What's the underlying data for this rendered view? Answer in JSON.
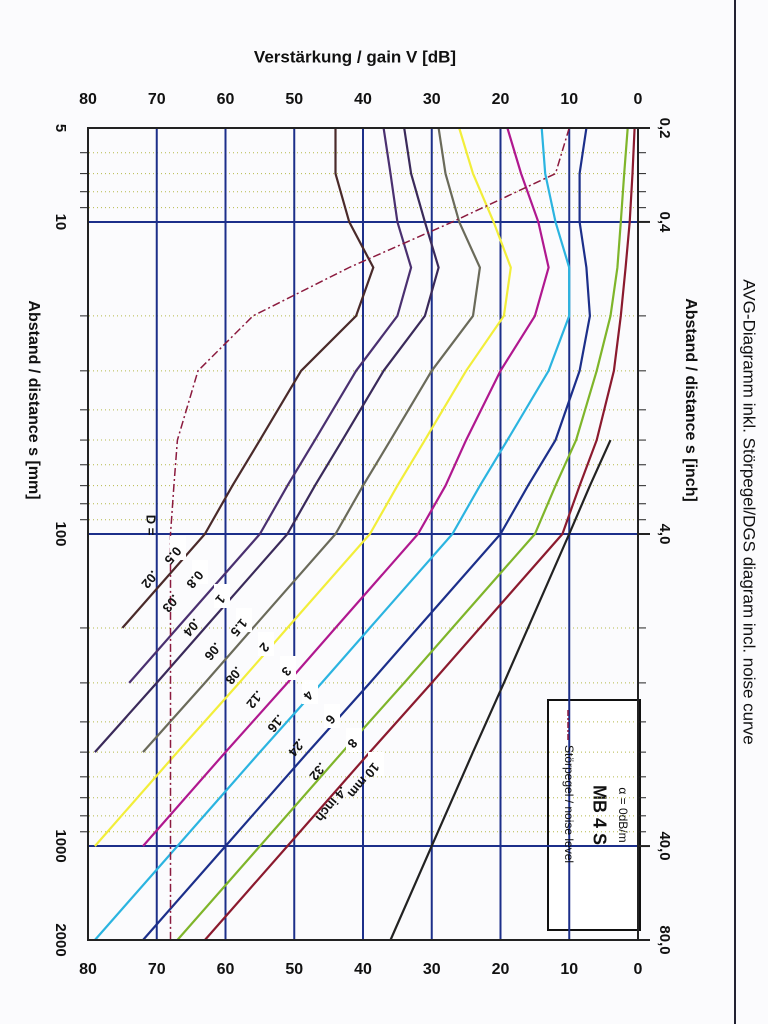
{
  "chart_data": {
    "type": "line",
    "title": "AVG-Diagramm inkl. Störpegel/DGS diagram incl. noise curve",
    "y_label": "Verstärkung / gain V [dB]",
    "x_label": "Abstand / distance s [mm]",
    "x2_label": "Abstand / distance s [inch]",
    "legend_attenuation": "α = 0dB/m",
    "legend_probe": "MB 4 S",
    "disk_label": "D =",
    "x_scale": "log",
    "x2_scale": "log",
    "xlim": [
      5,
      2000
    ],
    "xticks": [
      5,
      10,
      100,
      1000,
      2000
    ],
    "xticks_minor": [
      6,
      7,
      8,
      9,
      20,
      30,
      40,
      50,
      60,
      70,
      80,
      90,
      200,
      300,
      400,
      500,
      600,
      700,
      800,
      900
    ],
    "x2lim": [
      0.2,
      80
    ],
    "x2ticks": [
      {
        "value": 0.2,
        "label": "0,2"
      },
      {
        "value": 0.4,
        "label": "0,4"
      },
      {
        "value": 4,
        "label": "4,0"
      },
      {
        "value": 40,
        "label": "40,0"
      },
      {
        "value": 80,
        "label": "80,0"
      }
    ],
    "ylim": [
      0,
      80
    ],
    "yticks": [
      0,
      10,
      20,
      30,
      40,
      50,
      60,
      70,
      80
    ],
    "y_inverted": true,
    "grid": true,
    "x": [
      5,
      7,
      10,
      14,
      20,
      30,
      50,
      70,
      100,
      200,
      300,
      500,
      1000,
      2000
    ],
    "series": [
      {
        "name": "10 mm",
        "name_inch": ".4 inch",
        "color": "#8b1a2e",
        "values": [
          0.5,
          0.8,
          1.2,
          1.8,
          2.5,
          3.5,
          6,
          8.5,
          11,
          23,
          30,
          39,
          51,
          63
        ]
      },
      {
        "name": "8",
        "name_inch": ".32",
        "color": "#7fb52a",
        "values": [
          1.5,
          2,
          2.5,
          3,
          4,
          6,
          9,
          12,
          15,
          27,
          34,
          43,
          55,
          67
        ]
      },
      {
        "name": "6",
        "name_inch": ".24",
        "color": "#1c2f8a",
        "values": [
          7.5,
          8.5,
          8.5,
          7.5,
          7,
          8.5,
          12,
          16,
          20,
          32,
          39,
          48,
          60,
          72
        ]
      },
      {
        "name": "4",
        "name_inch": ".16",
        "color": "#2bb4e0",
        "values": [
          14,
          13.5,
          12,
          10,
          10,
          13,
          19,
          23,
          27,
          39,
          46,
          55,
          67,
          79
        ]
      },
      {
        "name": "3",
        "name_inch": ".12",
        "color": "#b0188f",
        "values": [
          19,
          17,
          14.5,
          13,
          15,
          20,
          25,
          28,
          32,
          44,
          51,
          60,
          72,
          null
        ]
      },
      {
        "name": "2",
        "name_inch": ".08",
        "color": "#f2ee3a",
        "values": [
          26,
          24,
          21,
          18.5,
          19.5,
          25,
          31,
          35,
          39,
          51,
          58,
          67,
          79,
          null
        ]
      },
      {
        "name": "1.5",
        "name_inch": ".06",
        "color": "#6a6a5a",
        "values": [
          29,
          28,
          26,
          23,
          24,
          30,
          36,
          40,
          44,
          56,
          63,
          72,
          null,
          null
        ]
      },
      {
        "name": "1",
        "name_inch": ".04",
        "color": "#3a2a5a",
        "values": [
          34,
          33,
          31,
          29,
          31,
          37,
          43,
          47,
          51,
          63,
          70,
          79,
          null,
          null
        ]
      },
      {
        "name": "0.8",
        "name_inch": ".03",
        "color": "#4a3070",
        "values": [
          37,
          36,
          35,
          33,
          35,
          41,
          47,
          51,
          55,
          67,
          74,
          null,
          null,
          null
        ]
      },
      {
        "name": "0.5",
        "name_inch": ".02",
        "color": "#4a2a2a",
        "values": [
          44,
          44,
          42,
          38.5,
          41,
          49,
          55,
          59,
          63,
          75,
          null,
          null,
          null,
          null
        ]
      },
      {
        "color": "#222222",
        "values": [
          null,
          null,
          null,
          null,
          null,
          null,
          4,
          7,
          10,
          16,
          19.5,
          24,
          30,
          36
        ]
      },
      {
        "name": "Störpegel / noise level",
        "color": "#8b1a3e",
        "dashed": true,
        "values": [
          10,
          12,
          27,
          42,
          56,
          64,
          67,
          67.5,
          68,
          68,
          68,
          68,
          68,
          68
        ]
      }
    ]
  }
}
